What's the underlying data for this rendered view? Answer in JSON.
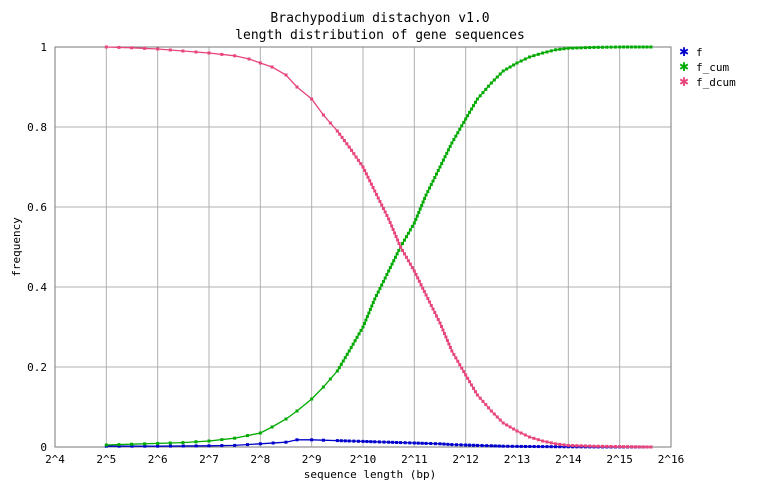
{
  "chart_data": {
    "type": "line",
    "title": [
      "Brachypodium distachyon v1.0",
      "length distribution of gene sequences"
    ],
    "xlabel": "sequence length (bp)",
    "ylabel": "frequency",
    "x_scale": "log2",
    "xlim": [
      16,
      65536
    ],
    "ylim": [
      0,
      1
    ],
    "x_ticks": [
      {
        "value": 16,
        "label": "2^4"
      },
      {
        "value": 32,
        "label": "2^5"
      },
      {
        "value": 64,
        "label": "2^6"
      },
      {
        "value": 128,
        "label": "2^7"
      },
      {
        "value": 256,
        "label": "2^8"
      },
      {
        "value": 512,
        "label": "2^9"
      },
      {
        "value": 1024,
        "label": "2^10"
      },
      {
        "value": 2048,
        "label": "2^11"
      },
      {
        "value": 4096,
        "label": "2^12"
      },
      {
        "value": 8192,
        "label": "2^13"
      },
      {
        "value": 16384,
        "label": "2^14"
      },
      {
        "value": 32768,
        "label": "2^15"
      },
      {
        "value": 65536,
        "label": "2^16"
      }
    ],
    "y_ticks": [
      {
        "value": 0,
        "label": "0"
      },
      {
        "value": 0.2,
        "label": "0.2"
      },
      {
        "value": 0.4,
        "label": "0.4"
      },
      {
        "value": 0.6,
        "label": "0.6"
      },
      {
        "value": 0.8,
        "label": "0.8"
      },
      {
        "value": 1,
        "label": "1"
      }
    ],
    "grid": true,
    "legend_position": "top-right",
    "series": [
      {
        "name": "f",
        "color": "#0000cc",
        "points": [
          [
            32,
            0.002
          ],
          [
            64,
            0.002
          ],
          [
            128,
            0.003
          ],
          [
            181,
            0.004
          ],
          [
            256,
            0.008
          ],
          [
            362,
            0.012
          ],
          [
            420,
            0.018
          ],
          [
            512,
            0.018
          ],
          [
            600,
            0.017
          ],
          [
            724,
            0.016
          ],
          [
            850,
            0.015
          ],
          [
            1024,
            0.014
          ],
          [
            1200,
            0.013
          ],
          [
            1448,
            0.012
          ],
          [
            1700,
            0.011
          ],
          [
            2048,
            0.01
          ],
          [
            2400,
            0.009
          ],
          [
            2896,
            0.008
          ],
          [
            3400,
            0.006
          ],
          [
            4096,
            0.005
          ],
          [
            4800,
            0.004
          ],
          [
            5793,
            0.003
          ],
          [
            6800,
            0.002
          ],
          [
            8192,
            0.0015
          ],
          [
            11585,
            0.001
          ],
          [
            16384,
            0.0005
          ],
          [
            23170,
            0.0002
          ],
          [
            32768,
            0.0001
          ],
          [
            50000,
            0.0
          ]
        ]
      },
      {
        "name": "f_cum",
        "color": "#00aa00",
        "points": [
          [
            32,
            0.005
          ],
          [
            45,
            0.007
          ],
          [
            64,
            0.009
          ],
          [
            90,
            0.011
          ],
          [
            128,
            0.015
          ],
          [
            181,
            0.022
          ],
          [
            256,
            0.035
          ],
          [
            300,
            0.05
          ],
          [
            362,
            0.07
          ],
          [
            420,
            0.09
          ],
          [
            512,
            0.12
          ],
          [
            600,
            0.15
          ],
          [
            724,
            0.19
          ],
          [
            850,
            0.24
          ],
          [
            1024,
            0.3
          ],
          [
            1200,
            0.37
          ],
          [
            1448,
            0.44
          ],
          [
            1700,
            0.5
          ],
          [
            2048,
            0.56
          ],
          [
            2400,
            0.63
          ],
          [
            2896,
            0.7
          ],
          [
            3400,
            0.76
          ],
          [
            4096,
            0.82
          ],
          [
            4800,
            0.87
          ],
          [
            5793,
            0.91
          ],
          [
            6800,
            0.94
          ],
          [
            8192,
            0.96
          ],
          [
            9700,
            0.975
          ],
          [
            11585,
            0.985
          ],
          [
            13800,
            0.993
          ],
          [
            16384,
            0.997
          ],
          [
            23170,
            0.999
          ],
          [
            32768,
            1.0
          ],
          [
            50000,
            1.0
          ]
        ]
      },
      {
        "name": "f_dcum",
        "color": "#e8457a",
        "points": [
          [
            32,
            1.0
          ],
          [
            45,
            0.998
          ],
          [
            64,
            0.995
          ],
          [
            90,
            0.99
          ],
          [
            128,
            0.985
          ],
          [
            181,
            0.978
          ],
          [
            220,
            0.97
          ],
          [
            256,
            0.96
          ],
          [
            300,
            0.95
          ],
          [
            362,
            0.93
          ],
          [
            420,
            0.9
          ],
          [
            512,
            0.87
          ],
          [
            600,
            0.83
          ],
          [
            724,
            0.79
          ],
          [
            850,
            0.75
          ],
          [
            1024,
            0.7
          ],
          [
            1200,
            0.64
          ],
          [
            1448,
            0.57
          ],
          [
            1700,
            0.5
          ],
          [
            2048,
            0.44
          ],
          [
            2400,
            0.38
          ],
          [
            2896,
            0.31
          ],
          [
            3400,
            0.24
          ],
          [
            4096,
            0.18
          ],
          [
            4800,
            0.13
          ],
          [
            5793,
            0.09
          ],
          [
            6800,
            0.06
          ],
          [
            8192,
            0.04
          ],
          [
            9700,
            0.025
          ],
          [
            11585,
            0.015
          ],
          [
            13800,
            0.008
          ],
          [
            16384,
            0.004
          ],
          [
            23170,
            0.002
          ],
          [
            32768,
            0.001
          ],
          [
            50000,
            0.0
          ]
        ]
      }
    ]
  }
}
